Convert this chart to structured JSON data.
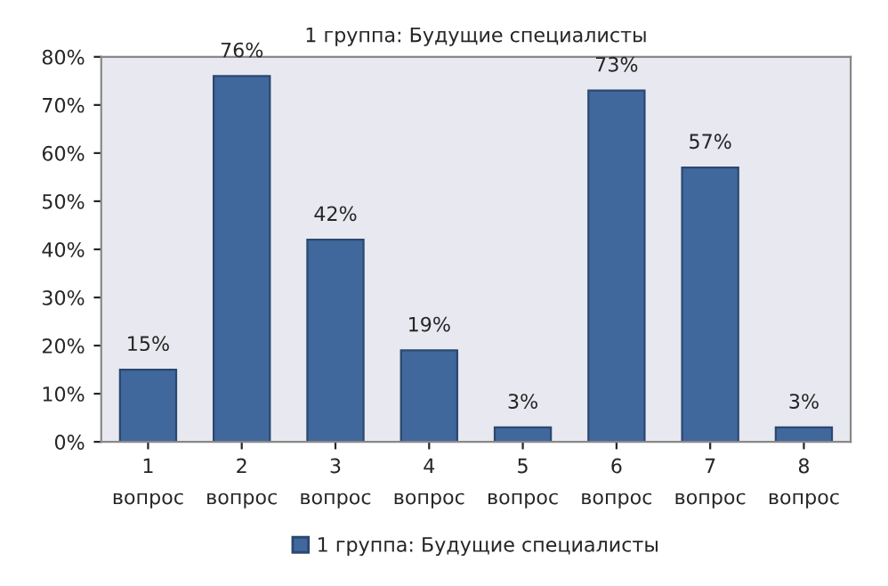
{
  "chart_data": {
    "type": "bar",
    "title": "1 группа: Будущие специалисты",
    "categories": [
      "1\nвопрос",
      "2\nвопрос",
      "3\nвопрос",
      "4\nвопрос",
      "5\nвопрос",
      "6\nвопрос",
      "7\nвопрос",
      "8\nвопрос"
    ],
    "series": [
      {
        "name": "1 группа: Будущие специалисты",
        "color": "#41689c",
        "values": [
          15,
          76,
          42,
          19,
          3,
          73,
          57,
          3
        ],
        "value_labels": [
          "15%",
          "76%",
          "42%",
          "19%",
          "3%",
          "73%",
          "57%",
          "3%"
        ]
      }
    ],
    "ylim": [
      0,
      80
    ],
    "yticks": [
      {
        "value": 0,
        "label": "0%"
      },
      {
        "value": 10,
        "label": "10%"
      },
      {
        "value": 20,
        "label": "20%"
      },
      {
        "value": 30,
        "label": "30%"
      },
      {
        "value": 40,
        "label": "40%"
      },
      {
        "value": 50,
        "label": "50%"
      },
      {
        "value": 60,
        "label": "60%"
      },
      {
        "value": 70,
        "label": "70%"
      },
      {
        "value": 80,
        "label": "80%"
      }
    ],
    "grid": false,
    "legend": "bottom"
  }
}
